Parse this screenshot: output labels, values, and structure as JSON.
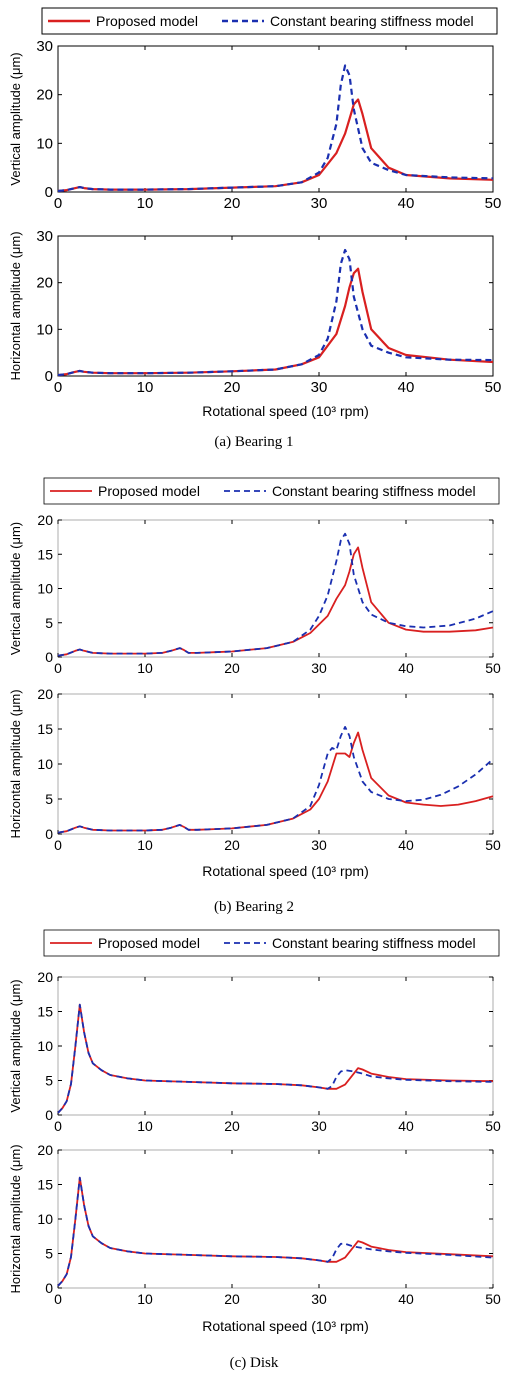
{
  "legend": {
    "proposed": "Proposed model",
    "constant": "Constant bearing stiffness model"
  },
  "colors": {
    "proposed": "#d92020",
    "constant": "#1a2fb0"
  },
  "chart_data": [
    {
      "panel": "a",
      "type": "line",
      "title": "",
      "xlabel": "",
      "ylabel": "Vertical amplitude (μm)",
      "xlim": [
        0,
        50
      ],
      "ylim": [
        0,
        30
      ],
      "yticks": [
        0,
        10,
        20,
        30
      ],
      "xticks": [
        0,
        10,
        20,
        30,
        40,
        50
      ],
      "series": [
        {
          "name": "Proposed model",
          "x": [
            0,
            1,
            2,
            2.5,
            3,
            4,
            6,
            10,
            15,
            20,
            25,
            28,
            30,
            32,
            33,
            33.5,
            34,
            34.5,
            35,
            36,
            38,
            40,
            45,
            50
          ],
          "y": [
            0.2,
            0.4,
            0.8,
            1,
            0.8,
            0.6,
            0.5,
            0.5,
            0.6,
            0.9,
            1.2,
            2,
            3.5,
            8,
            12,
            15,
            18,
            19,
            16,
            9,
            5,
            3.5,
            2.8,
            2.5
          ]
        },
        {
          "name": "Constant bearing stiffness model",
          "x": [
            0,
            1,
            2,
            2.5,
            3,
            4,
            6,
            10,
            15,
            20,
            25,
            28,
            30,
            31,
            32,
            32.5,
            33,
            33.5,
            34,
            35,
            36,
            38,
            40,
            45,
            50
          ],
          "y": [
            0.2,
            0.4,
            0.8,
            1,
            0.8,
            0.6,
            0.5,
            0.5,
            0.6,
            0.9,
            1.2,
            2,
            4,
            7,
            14,
            22,
            26,
            24,
            17,
            9,
            6,
            4.5,
            3.5,
            3,
            2.8
          ]
        }
      ]
    },
    {
      "panel": "a",
      "type": "line",
      "title": "",
      "xlabel": "Rotational speed (10³ rpm)",
      "ylabel": "Horizontal amplitude (μm)",
      "xlim": [
        0,
        50
      ],
      "ylim": [
        0,
        30
      ],
      "yticks": [
        0,
        10,
        20,
        30
      ],
      "xticks": [
        0,
        10,
        20,
        30,
        40,
        50
      ],
      "series": [
        {
          "name": "Proposed model",
          "x": [
            0,
            1,
            2,
            2.5,
            3,
            4,
            6,
            10,
            15,
            20,
            25,
            28,
            30,
            32,
            33,
            33.5,
            34,
            34.5,
            35,
            36,
            38,
            40,
            45,
            50
          ],
          "y": [
            0.2,
            0.4,
            0.9,
            1.1,
            0.9,
            0.7,
            0.6,
            0.6,
            0.7,
            1,
            1.4,
            2.5,
            4,
            9,
            15,
            19,
            22,
            23,
            18,
            10,
            6,
            4.5,
            3.5,
            3
          ]
        },
        {
          "name": "Constant bearing stiffness model",
          "x": [
            0,
            1,
            2,
            2.5,
            3,
            4,
            6,
            10,
            15,
            20,
            25,
            28,
            30,
            31,
            32,
            32.5,
            33,
            33.5,
            34,
            35,
            36,
            38,
            40,
            45,
            50
          ],
          "y": [
            0.2,
            0.4,
            0.9,
            1.1,
            0.9,
            0.7,
            0.6,
            0.6,
            0.7,
            1,
            1.4,
            2.5,
            4.5,
            8,
            16,
            24,
            27,
            25,
            17,
            10,
            6.5,
            5,
            4,
            3.5,
            3.4
          ]
        }
      ]
    },
    {
      "panel": "b",
      "type": "line",
      "title": "",
      "xlabel": "",
      "ylabel": "Vertical amplitude (μm)",
      "xlim": [
        0,
        50
      ],
      "ylim": [
        0,
        20
      ],
      "yticks": [
        0,
        5,
        10,
        15,
        20
      ],
      "xticks": [
        0,
        10,
        20,
        30,
        40,
        50
      ],
      "series": [
        {
          "name": "Proposed model",
          "x": [
            0,
            1,
            2,
            2.5,
            3,
            4,
            6,
            10,
            12,
            13,
            14,
            14.5,
            15,
            16,
            18,
            20,
            24,
            27,
            29,
            31,
            32,
            33,
            33.5,
            34,
            34.5,
            35,
            36,
            38,
            40,
            42,
            45,
            48,
            50
          ],
          "y": [
            0.2,
            0.4,
            0.9,
            1.1,
            0.9,
            0.6,
            0.5,
            0.5,
            0.6,
            0.9,
            1.3,
            1,
            0.6,
            0.6,
            0.7,
            0.8,
            1.3,
            2.2,
            3.5,
            6,
            8.5,
            10.5,
            12.5,
            15,
            16,
            13,
            8,
            5,
            4,
            3.7,
            3.7,
            3.9,
            4.3
          ]
        },
        {
          "name": "Constant bearing stiffness model",
          "x": [
            0,
            1,
            2,
            2.5,
            3,
            4,
            6,
            10,
            12,
            13,
            14,
            14.5,
            15,
            16,
            18,
            20,
            24,
            27,
            29,
            30,
            31,
            32,
            32.5,
            33,
            33.5,
            34,
            35,
            36,
            38,
            40,
            42,
            45,
            48,
            50
          ],
          "y": [
            0.2,
            0.4,
            0.9,
            1.1,
            0.9,
            0.6,
            0.5,
            0.5,
            0.6,
            0.9,
            1.3,
            1,
            0.6,
            0.6,
            0.7,
            0.8,
            1.3,
            2.2,
            4,
            6,
            9,
            14,
            17,
            18,
            16.5,
            12,
            8,
            6.2,
            5,
            4.5,
            4.3,
            4.6,
            5.6,
            6.7
          ]
        }
      ]
    },
    {
      "panel": "b",
      "type": "line",
      "title": "",
      "xlabel": "Rotational speed (10³ rpm)",
      "ylabel": "Horizontal amplitude (μm)",
      "xlim": [
        0,
        50
      ],
      "ylim": [
        0,
        20
      ],
      "yticks": [
        0,
        5,
        10,
        15,
        20
      ],
      "xticks": [
        0,
        10,
        20,
        30,
        40,
        50
      ],
      "series": [
        {
          "name": "Proposed model",
          "x": [
            0,
            1,
            2,
            2.5,
            3,
            4,
            6,
            10,
            12,
            13,
            14,
            14.5,
            15,
            16,
            18,
            20,
            24,
            27,
            29,
            30,
            31,
            32,
            33,
            33.5,
            34,
            34.5,
            35,
            36,
            38,
            40,
            42,
            44,
            46,
            48,
            50
          ],
          "y": [
            0.2,
            0.4,
            0.9,
            1.1,
            0.9,
            0.6,
            0.5,
            0.5,
            0.6,
            0.9,
            1.3,
            1,
            0.6,
            0.6,
            0.7,
            0.8,
            1.3,
            2.2,
            3.5,
            5,
            7.5,
            11.5,
            11.5,
            11,
            13,
            14.5,
            12,
            8,
            5.5,
            4.5,
            4.2,
            4,
            4.2,
            4.7,
            5.4
          ]
        },
        {
          "name": "Constant bearing stiffness model",
          "x": [
            0,
            1,
            2,
            2.5,
            3,
            4,
            6,
            10,
            12,
            13,
            14,
            14.5,
            15,
            16,
            18,
            20,
            24,
            27,
            29,
            30,
            31,
            31.5,
            32,
            32.5,
            33,
            33.5,
            34,
            35,
            36,
            38,
            40,
            42,
            44,
            46,
            48,
            50
          ],
          "y": [
            0.2,
            0.4,
            0.9,
            1.1,
            0.9,
            0.6,
            0.5,
            0.5,
            0.6,
            0.9,
            1.3,
            1,
            0.6,
            0.6,
            0.7,
            0.8,
            1.3,
            2.2,
            4,
            7,
            11.5,
            12.3,
            12,
            14,
            15.3,
            14,
            11,
            7.5,
            6,
            5,
            4.7,
            4.9,
            5.6,
            6.8,
            8.5,
            10.7
          ]
        }
      ]
    },
    {
      "panel": "c",
      "type": "line",
      "title": "",
      "xlabel": "",
      "ylabel": "Vertical amplitude (μm)",
      "xlim": [
        0,
        50
      ],
      "ylim": [
        0,
        20
      ],
      "yticks": [
        0,
        5,
        10,
        15,
        20
      ],
      "xticks": [
        0,
        10,
        20,
        30,
        40,
        50
      ],
      "series": [
        {
          "name": "Proposed model",
          "x": [
            0,
            0.5,
            1,
            1.5,
            2,
            2.5,
            3,
            3.5,
            4,
            5,
            6,
            8,
            10,
            15,
            20,
            25,
            28,
            30,
            31,
            32,
            33,
            34,
            34.5,
            35,
            36,
            38,
            40,
            45,
            50
          ],
          "y": [
            0.3,
            1,
            2,
            4.5,
            10,
            16,
            12,
            9,
            7.5,
            6.5,
            5.8,
            5.3,
            5,
            4.8,
            4.6,
            4.5,
            4.3,
            4,
            3.8,
            3.8,
            4.4,
            6,
            6.8,
            6.6,
            6,
            5.5,
            5.2,
            5,
            4.9
          ]
        },
        {
          "name": "Constant bearing stiffness model",
          "x": [
            0,
            0.5,
            1,
            1.5,
            2,
            2.5,
            3,
            3.5,
            4,
            5,
            6,
            8,
            10,
            15,
            20,
            25,
            28,
            30,
            31,
            31.5,
            32,
            32.5,
            33,
            34,
            35,
            36,
            38,
            40,
            45,
            50
          ],
          "y": [
            0.3,
            1,
            2,
            4.5,
            10,
            16,
            12,
            9,
            7.5,
            6.5,
            5.8,
            5.3,
            5,
            4.8,
            4.6,
            4.5,
            4.3,
            4,
            3.8,
            4.2,
            5.5,
            6.3,
            6.5,
            6.3,
            6,
            5.6,
            5.3,
            5.1,
            4.9,
            4.8
          ]
        }
      ]
    },
    {
      "panel": "c",
      "type": "line",
      "title": "",
      "xlabel": "Rotational speed (10³ rpm)",
      "ylabel": "Horizontal amplitude (μm)",
      "xlim": [
        0,
        50
      ],
      "ylim": [
        0,
        20
      ],
      "yticks": [
        0,
        5,
        10,
        15,
        20
      ],
      "xticks": [
        0,
        10,
        20,
        30,
        40,
        50
      ],
      "series": [
        {
          "name": "Proposed model",
          "x": [
            0,
            0.5,
            1,
            1.5,
            2,
            2.5,
            3,
            3.5,
            4,
            5,
            6,
            8,
            10,
            15,
            20,
            25,
            28,
            30,
            31,
            32,
            33,
            34,
            34.5,
            35,
            36,
            38,
            40,
            45,
            50
          ],
          "y": [
            0.3,
            1,
            2,
            4.5,
            10,
            16,
            12,
            9,
            7.5,
            6.5,
            5.8,
            5.3,
            5,
            4.8,
            4.6,
            4.5,
            4.3,
            4,
            3.8,
            3.8,
            4.4,
            6,
            6.8,
            6.6,
            6,
            5.5,
            5.2,
            4.9,
            4.6
          ]
        },
        {
          "name": "Constant bearing stiffness model",
          "x": [
            0,
            0.5,
            1,
            1.5,
            2,
            2.5,
            3,
            3.5,
            4,
            5,
            6,
            8,
            10,
            15,
            20,
            25,
            28,
            30,
            31,
            31.5,
            32,
            32.5,
            33,
            34,
            35,
            36,
            38,
            40,
            45,
            50
          ],
          "y": [
            0.3,
            1,
            2,
            4.5,
            10,
            16,
            12,
            9,
            7.5,
            6.5,
            5.8,
            5.3,
            5,
            4.8,
            4.6,
            4.5,
            4.3,
            4,
            3.8,
            4.3,
            5.6,
            6.4,
            6.4,
            6,
            5.8,
            5.6,
            5.3,
            5.1,
            4.8,
            4.4
          ]
        }
      ]
    }
  ],
  "captions": [
    "(a) Bearing 1",
    "(b) Bearing 2",
    "(c) Disk"
  ]
}
